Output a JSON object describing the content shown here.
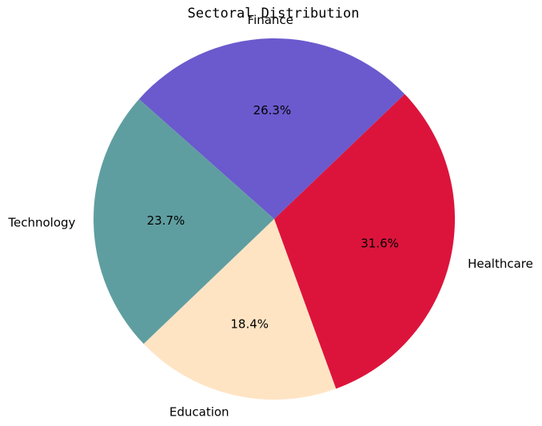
{
  "chart_data": {
    "type": "pie",
    "title": "Sectoral Distribution",
    "slices": [
      {
        "label": "Healthcare",
        "value": 31.6,
        "pct_label": "31.6%",
        "color": "#dc143c"
      },
      {
        "label": "Finance",
        "value": 26.3,
        "pct_label": "26.3%",
        "color": "#6a5acd"
      },
      {
        "label": "Technology",
        "value": 23.7,
        "pct_label": "23.7%",
        "color": "#5f9ea0"
      },
      {
        "label": "Education",
        "value": 18.4,
        "pct_label": "18.4%",
        "color": "#ffe4c4"
      }
    ],
    "start_angle_deg": -70,
    "direction": "counterclockwise",
    "legend": "none"
  }
}
